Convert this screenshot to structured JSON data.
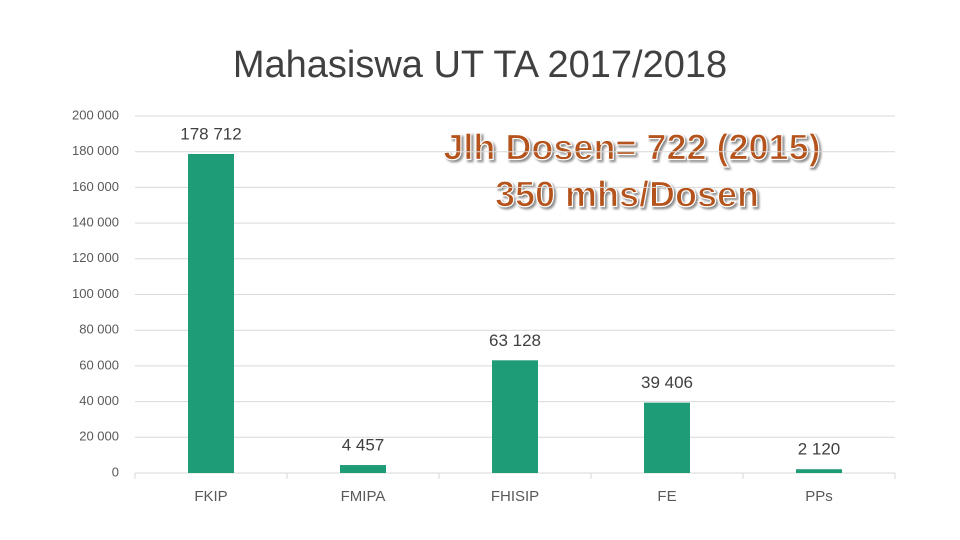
{
  "chart_data": {
    "type": "bar",
    "title": "Mahasiswa UT TA 2017/2018",
    "categories": [
      "FKIP",
      "FMIPA",
      "FHISIP",
      "FE",
      "PPs"
    ],
    "values": [
      178712,
      4457,
      63128,
      39406,
      2120
    ],
    "value_labels": [
      "178 712",
      "4 457",
      "63 128",
      "39 406",
      "2 120"
    ],
    "color": "#1e9c78",
    "ylim": [
      0,
      200000
    ],
    "yticks": [
      {
        "value": 0,
        "label": "0"
      },
      {
        "value": 20000,
        "label": "20 000"
      },
      {
        "value": 40000,
        "label": "40 000"
      },
      {
        "value": 60000,
        "label": "60 000"
      },
      {
        "value": 80000,
        "label": "80 000"
      },
      {
        "value": 100000,
        "label": "100 000"
      },
      {
        "value": 120000,
        "label": "120 000"
      },
      {
        "value": 140000,
        "label": "140 000"
      },
      {
        "value": 160000,
        "label": "160 000"
      },
      {
        "value": 180000,
        "label": "180 000"
      },
      {
        "value": 200000,
        "label": "200 000"
      }
    ],
    "grid": true,
    "annotations": [
      "Jlh Dosen= 722 (2015)",
      "350 mhs/Dosen"
    ]
  }
}
